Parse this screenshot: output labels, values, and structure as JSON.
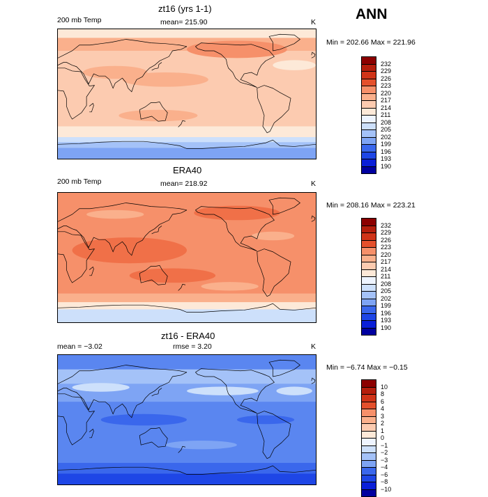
{
  "header": {
    "season": "ANN"
  },
  "palettes": {
    "abs": [
      "#0000a0",
      "#0a1fd8",
      "#1e46e6",
      "#3a67ec",
      "#5a86f0",
      "#7ea4f4",
      "#a4c2f8",
      "#cde0fb",
      "#eef4ff",
      "#fde9d8",
      "#fccbb0",
      "#fab08c",
      "#f6906a",
      "#f07048",
      "#e4502c",
      "#d03418",
      "#b51e0c",
      "#8c0000"
    ],
    "diff": [
      "#0000a0",
      "#0a1fd8",
      "#1e46e6",
      "#3a67ec",
      "#5a86f0",
      "#7ea4f4",
      "#a4c2f8",
      "#cde0fb",
      "#eef4ff",
      "#fde9d8",
      "#fccbb0",
      "#fab08c",
      "#f6906a",
      "#f07048",
      "#e4502c",
      "#d03418",
      "#b51e0c",
      "#8c0000"
    ]
  },
  "chart_data": [
    {
      "type": "heatmap",
      "title": "zt16 (yrs 1-1)",
      "left_label": "200 mb Temp",
      "center_label": "mean= 215.90",
      "unit_label": "K",
      "stats": "Min = 202.66 Max = 221.96",
      "palette": "abs",
      "colorbar_ticks": [
        "232",
        "229",
        "226",
        "223",
        "220",
        "217",
        "214",
        "211",
        "208",
        "205",
        "202",
        "199",
        "196",
        "193",
        "190"
      ],
      "bands": [
        {
          "lat_from": 90,
          "lat_to": 78,
          "level": 9
        },
        {
          "lat_from": 78,
          "lat_to": 60,
          "level": 11
        },
        {
          "lat_from": 60,
          "lat_to": 45,
          "level": 10
        },
        {
          "lat_from": 45,
          "lat_to": -45,
          "level": 10
        },
        {
          "lat_from": -45,
          "lat_to": -60,
          "level": 9
        },
        {
          "lat_from": -60,
          "lat_to": -67,
          "level": 7
        },
        {
          "lat_from": -67,
          "lat_to": -75,
          "level": 6
        },
        {
          "lat_from": -75,
          "lat_to": -90,
          "level": 5
        }
      ],
      "patches": [
        {
          "lon": 250,
          "lat": 62,
          "rlon": 70,
          "rlat": 12,
          "level": 12
        },
        {
          "lon": 80,
          "lat": 30,
          "rlon": 45,
          "rlat": 9,
          "level": 11
        },
        {
          "lon": 150,
          "lat": 20,
          "rlon": 60,
          "rlat": 10,
          "level": 11
        },
        {
          "lon": 140,
          "lat": -30,
          "rlon": 55,
          "rlat": 8,
          "level": 11
        },
        {
          "lon": 330,
          "lat": 40,
          "rlon": 30,
          "rlat": 7,
          "level": 9
        },
        {
          "lon": 250,
          "lat": -35,
          "rlon": 40,
          "rlat": 6,
          "level": 10
        }
      ]
    },
    {
      "type": "heatmap",
      "title": "ERA40",
      "left_label": "200 mb Temp",
      "center_label": "mean= 218.92",
      "unit_label": "K",
      "stats": "Min = 208.16 Max = 223.21",
      "palette": "abs",
      "colorbar_ticks": [
        "232",
        "229",
        "226",
        "223",
        "220",
        "217",
        "214",
        "211",
        "208",
        "205",
        "202",
        "199",
        "196",
        "193",
        "190"
      ],
      "bands": [
        {
          "lat_from": 90,
          "lat_to": 70,
          "level": 12
        },
        {
          "lat_from": 70,
          "lat_to": 50,
          "level": 12
        },
        {
          "lat_from": 50,
          "lat_to": -50,
          "level": 12
        },
        {
          "lat_from": -50,
          "lat_to": -62,
          "level": 11
        },
        {
          "lat_from": -62,
          "lat_to": -72,
          "level": 9
        },
        {
          "lat_from": -72,
          "lat_to": -90,
          "level": 7
        }
      ],
      "patches": [
        {
          "lon": 100,
          "lat": 10,
          "rlon": 80,
          "rlat": 18,
          "level": 13
        },
        {
          "lon": 160,
          "lat": -25,
          "rlon": 60,
          "rlat": 10,
          "level": 13
        },
        {
          "lon": 250,
          "lat": 62,
          "rlon": 60,
          "rlat": 10,
          "level": 13
        },
        {
          "lon": 80,
          "lat": 60,
          "rlon": 40,
          "rlat": 6,
          "level": 11
        },
        {
          "lon": 300,
          "lat": 30,
          "rlon": 30,
          "rlat": 6,
          "level": 11
        },
        {
          "lon": 240,
          "lat": -40,
          "rlon": 40,
          "rlat": 6,
          "level": 11
        }
      ]
    },
    {
      "type": "heatmap",
      "title": "zt16 - ERA40",
      "left_label": "mean =   −3.02",
      "center_label": "rmse =     3.20",
      "unit_label": "K",
      "stats": "Min =  −6.74  Max =  −0.15",
      "palette": "diff",
      "colorbar_ticks": [
        "10",
        "8",
        "6",
        "4",
        "3",
        "2",
        "1",
        "0",
        "−1",
        "−2",
        "−3",
        "−4",
        "−6",
        "−8",
        "−10"
      ],
      "bands": [
        {
          "lat_from": 90,
          "lat_to": 70,
          "level": 4
        },
        {
          "lat_from": 70,
          "lat_to": 50,
          "level": 6
        },
        {
          "lat_from": 50,
          "lat_to": 25,
          "level": 5
        },
        {
          "lat_from": 25,
          "lat_to": -20,
          "level": 4
        },
        {
          "lat_from": -20,
          "lat_to": -40,
          "level": 4
        },
        {
          "lat_from": -40,
          "lat_to": -60,
          "level": 4
        },
        {
          "lat_from": -60,
          "lat_to": -75,
          "level": 3
        },
        {
          "lat_from": -75,
          "lat_to": -90,
          "level": 2
        }
      ],
      "patches": [
        {
          "lon": 60,
          "lat": 45,
          "rlon": 40,
          "rlat": 6,
          "level": 7
        },
        {
          "lon": 230,
          "lat": 40,
          "rlon": 50,
          "rlat": 6,
          "level": 7
        },
        {
          "lon": 330,
          "lat": 40,
          "rlon": 25,
          "rlat": 6,
          "level": 7
        },
        {
          "lon": 120,
          "lat": 0,
          "rlon": 60,
          "rlat": 8,
          "level": 3
        },
        {
          "lon": 290,
          "lat": 0,
          "rlon": 40,
          "rlat": 6,
          "level": 3
        },
        {
          "lon": 200,
          "lat": -35,
          "rlon": 50,
          "rlat": 6,
          "level": 5
        }
      ]
    }
  ]
}
